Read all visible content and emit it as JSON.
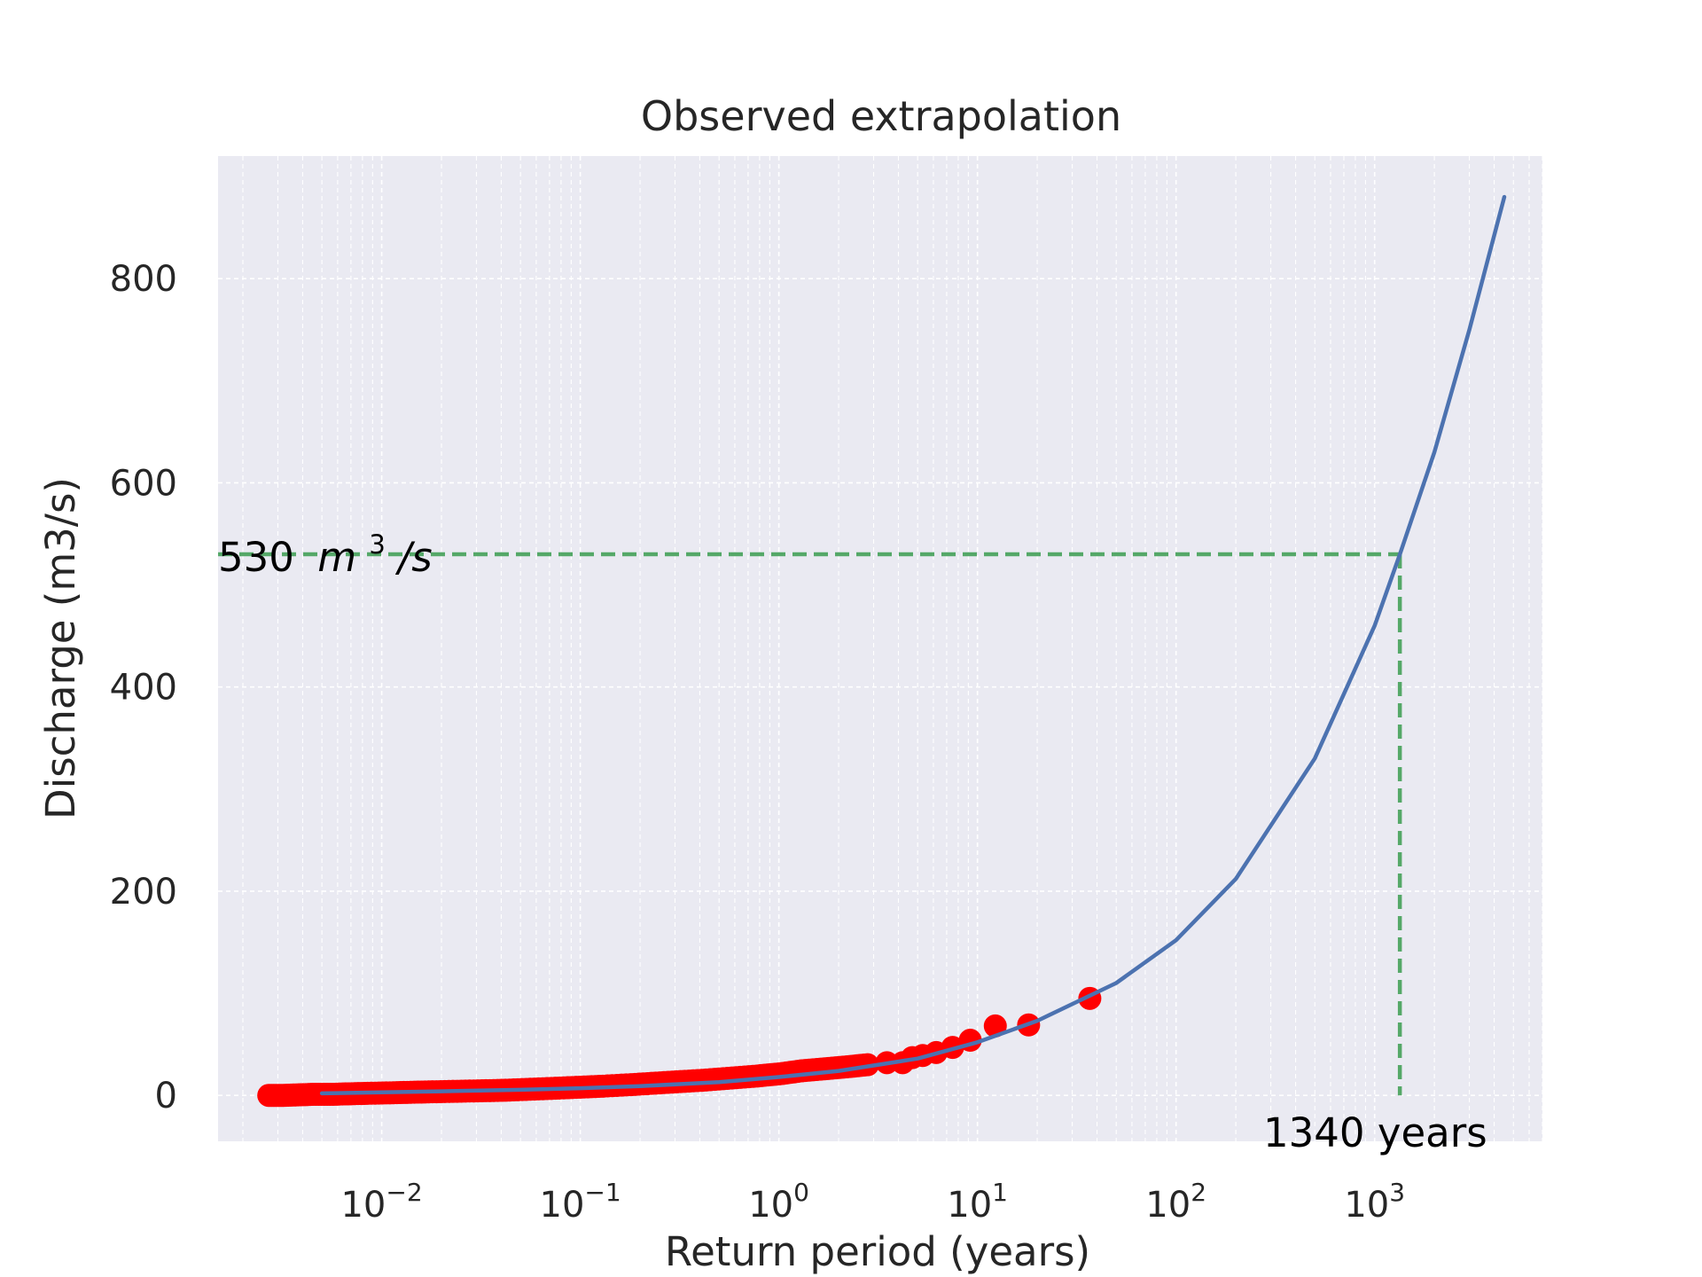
{
  "chart_data": {
    "type": "scatter",
    "title": "Observed extrapolation",
    "xlabel": "Return period (years)",
    "ylabel": "Discharge (m3/s)",
    "x_scale": "log",
    "xlim": [
      0.0015,
      7000
    ],
    "ylim": [
      -45,
      920
    ],
    "x_ticks": [
      {
        "base": "10",
        "exp": "−2",
        "value": 0.01
      },
      {
        "base": "10",
        "exp": "−1",
        "value": 0.1
      },
      {
        "base": "10",
        "exp": "0",
        "value": 1
      },
      {
        "base": "10",
        "exp": "1",
        "value": 10
      },
      {
        "base": "10",
        "exp": "2",
        "value": 100
      },
      {
        "base": "10",
        "exp": "3",
        "value": 1000
      }
    ],
    "y_ticks": [
      0,
      200,
      400,
      600,
      800
    ],
    "grid": true,
    "background_color": "#eaeaf2",
    "observed": {
      "color": "#ff0000",
      "x": [
        0.0027,
        0.0032,
        0.0038,
        0.0045,
        0.0055,
        0.0068,
        0.0085,
        0.011,
        0.014,
        0.018,
        0.024,
        0.032,
        0.042,
        0.056,
        0.075,
        0.1,
        0.13,
        0.18,
        0.24,
        0.32,
        0.43,
        0.58,
        0.78,
        1.0,
        1.3,
        1.7,
        2.2,
        2.8,
        3.5,
        4.2,
        4.7,
        5.3,
        6.2,
        7.5,
        9.2,
        12.3,
        18.1,
        36.8
      ],
      "y": [
        0,
        0,
        0.5,
        1,
        1,
        1.5,
        2,
        2.5,
        3,
        3.5,
        4,
        4.5,
        5,
        6,
        7,
        8,
        9,
        10.5,
        12,
        13.5,
        15,
        17,
        19,
        21,
        24,
        26,
        28,
        30,
        32,
        32,
        37,
        39,
        42,
        47,
        54,
        68,
        69,
        95
      ]
    },
    "fit": {
      "color": "#4c72b0",
      "x": [
        0.005,
        0.01,
        0.02,
        0.05,
        0.1,
        0.2,
        0.5,
        1,
        2,
        5,
        10,
        20,
        50,
        100,
        200,
        500,
        1000,
        1340,
        2000,
        3000,
        4500
      ],
      "y": [
        2,
        3,
        4,
        5.5,
        7,
        9,
        13,
        18,
        24,
        36,
        52,
        73,
        110,
        152,
        212,
        330,
        460,
        530,
        630,
        750,
        880
      ]
    },
    "reference": {
      "color": "#55a868",
      "x": 1340,
      "y": 530,
      "y_label_value": "530",
      "y_label_unit_base": "m",
      "y_label_unit_exp": "3",
      "y_label_unit_rest": "/s",
      "x_label": "1340 years"
    }
  }
}
